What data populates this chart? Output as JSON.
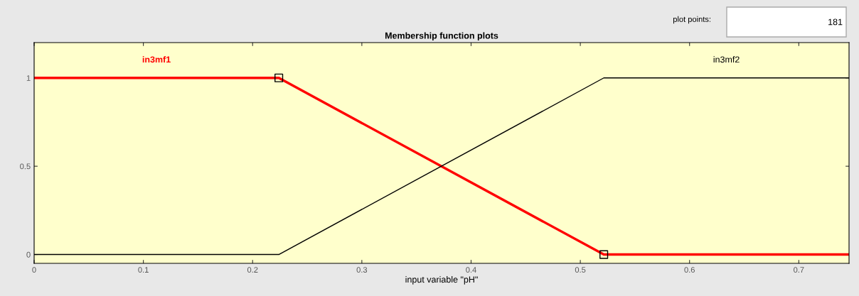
{
  "chart_data": {
    "type": "line",
    "title": "Membership function plots",
    "xlabel": "input variable \"pH\"",
    "x": [
      0,
      0.224,
      0.5215,
      0.746
    ],
    "series": [
      {
        "name": "in3mf1",
        "color": "#ff0000",
        "values": [
          1,
          1,
          0,
          0
        ]
      },
      {
        "name": "in3mf2",
        "color": "#000000",
        "values": [
          0,
          0,
          1,
          1
        ]
      },
      {
        "type": "scatter",
        "color": "#000000",
        "x": [
          0.224,
          0.5215
        ],
        "values": [
          1,
          0
        ],
        "marker": "square"
      }
    ],
    "xlim": [
      0,
      0.746
    ],
    "xticks": [
      0,
      0.1,
      0.2,
      0.3,
      0.4,
      0.5,
      0.6,
      0.7
    ],
    "ylim": [
      -0.05,
      1.2
    ],
    "yticks": [
      0,
      0.5,
      1
    ],
    "grid": false,
    "legend": false,
    "marker": "none",
    "annotations": [
      "plot points:",
      "181"
    ]
  }
}
